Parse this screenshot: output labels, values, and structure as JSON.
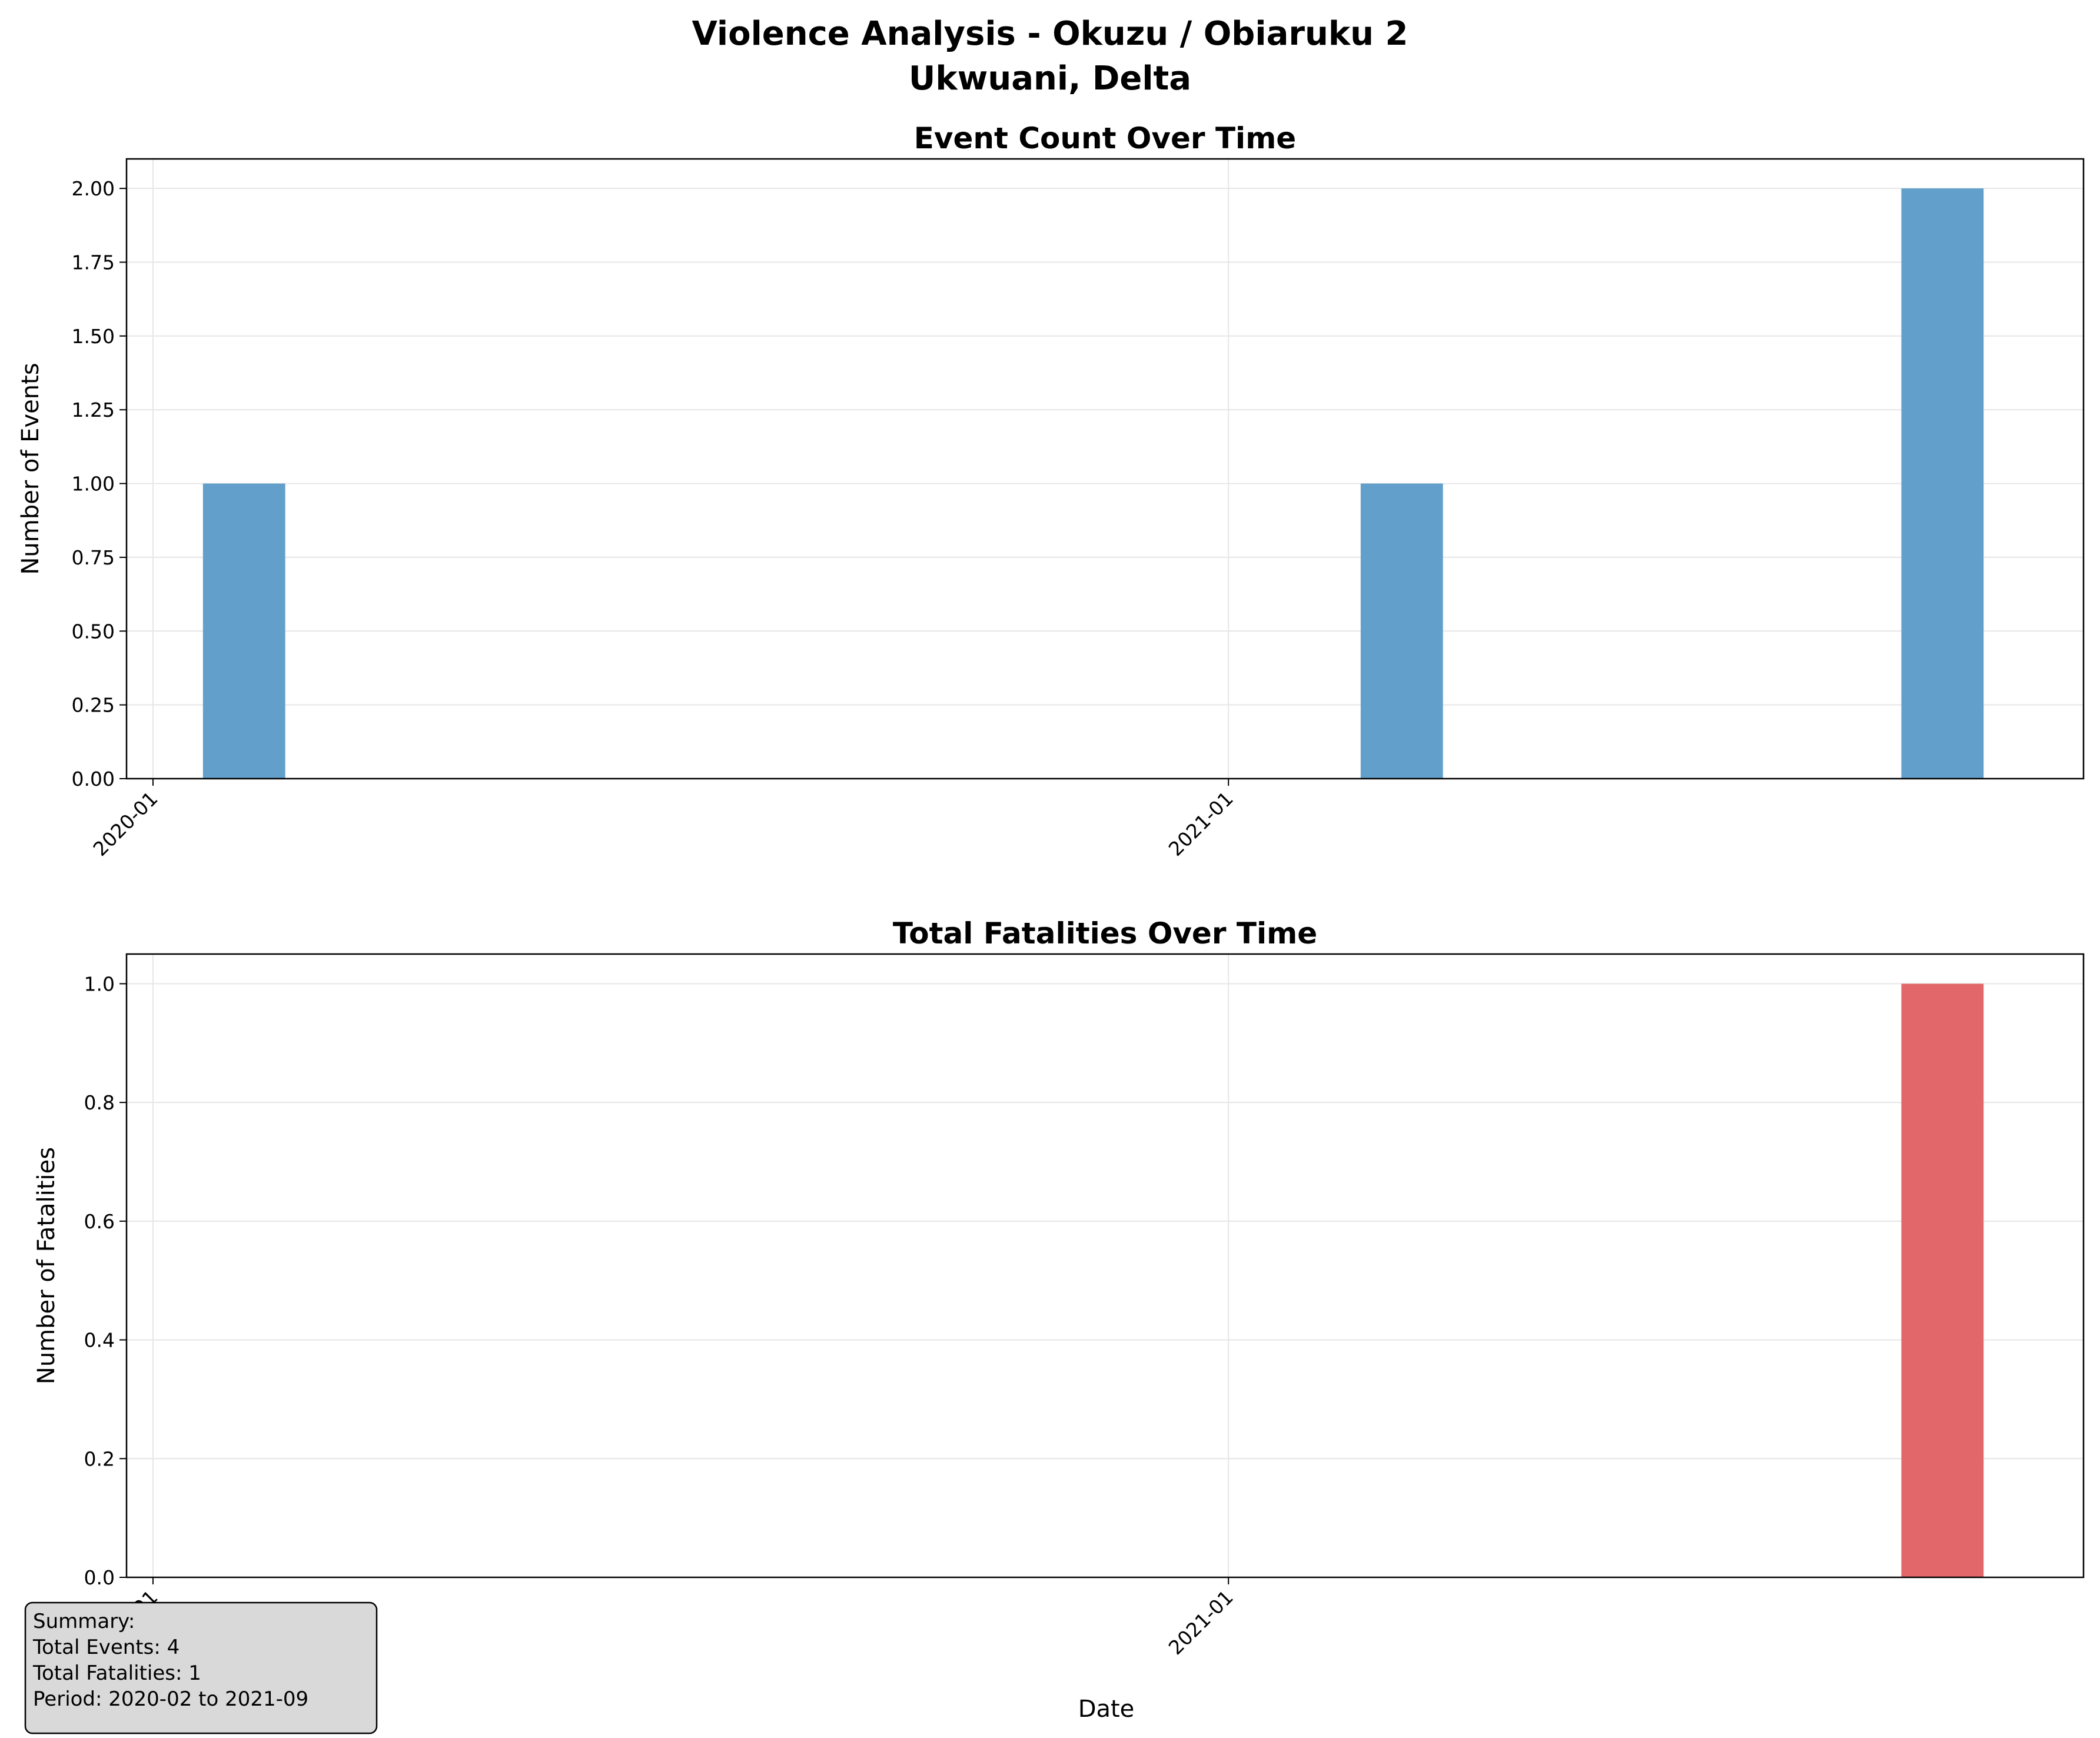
{
  "figure": {
    "title_line1": "Violence Analysis - Okuzu / Obiaruku  2",
    "title_line2": "Ukwuani, Delta"
  },
  "summary": {
    "lines": [
      "Summary:",
      "Total Events: 4",
      "Total Fatalities: 1",
      "Period: 2020-02 to 2021-09"
    ]
  },
  "colors": {
    "events_bar": "#62a0cb",
    "fatalities_bar": "#e2676b",
    "grid": "#e6e6e6"
  },
  "chart_data": [
    {
      "type": "bar",
      "title": "Event Count Over Time",
      "xlabel": "",
      "ylabel": "Number of Events",
      "x": [
        "2020-02",
        "2021-03",
        "2021-09"
      ],
      "values": [
        1,
        1,
        2
      ],
      "xlim": [
        "2019-12-23",
        "2021-10-19"
      ],
      "ylim": [
        0,
        2.1
      ],
      "yticks": [
        0,
        0.25,
        0.5,
        0.75,
        1.0,
        1.25,
        1.5,
        1.75,
        2.0
      ],
      "ytick_labels": [
        "0.00",
        "0.25",
        "0.50",
        "0.75",
        "1.00",
        "1.25",
        "1.50",
        "1.75",
        "2.00"
      ],
      "xticks": [
        "2020-01",
        "2021-01"
      ],
      "grid": true
    },
    {
      "type": "bar",
      "title": "Total Fatalities Over Time",
      "xlabel": "Date",
      "ylabel": "Number of Fatalities",
      "x": [
        "2020-02",
        "2021-03",
        "2021-09"
      ],
      "values": [
        0,
        0,
        1
      ],
      "xlim": [
        "2019-12-23",
        "2021-10-19"
      ],
      "ylim": [
        0,
        1.05
      ],
      "yticks": [
        0,
        0.2,
        0.4,
        0.6,
        0.8,
        1.0
      ],
      "ytick_labels": [
        "0.0",
        "0.2",
        "0.4",
        "0.6",
        "0.8",
        "1.0"
      ],
      "xticks": [
        "2020-01",
        "2021-01"
      ],
      "grid": true
    }
  ]
}
